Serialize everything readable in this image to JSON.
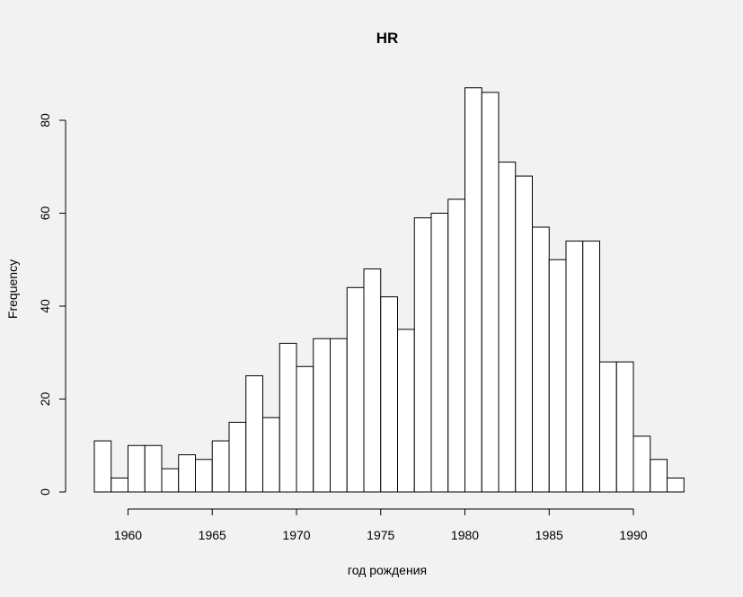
{
  "chart_data": {
    "type": "bar",
    "title": "HR",
    "xlabel": "год рождения",
    "ylabel": "Frequency",
    "bin_width": 1,
    "bins_start": [
      1958,
      1959,
      1960,
      1961,
      1962,
      1963,
      1964,
      1965,
      1966,
      1967,
      1968,
      1969,
      1970,
      1971,
      1972,
      1973,
      1974,
      1975,
      1976,
      1977,
      1978,
      1979,
      1980,
      1981,
      1982,
      1983,
      1984,
      1985,
      1986,
      1987,
      1988,
      1989,
      1990,
      1991,
      1992
    ],
    "values": [
      11,
      3,
      10,
      10,
      5,
      8,
      7,
      11,
      15,
      25,
      16,
      32,
      27,
      33,
      33,
      44,
      48,
      42,
      35,
      59,
      60,
      63,
      87,
      86,
      71,
      68,
      57,
      50,
      54,
      54,
      28,
      28,
      12,
      7,
      3
    ],
    "xlim": [
      1958,
      1993
    ],
    "ylim": [
      0,
      87
    ],
    "x_ticks": [
      1960,
      1965,
      1970,
      1975,
      1980,
      1985,
      1990
    ],
    "y_ticks": [
      0,
      20,
      40,
      60,
      80
    ],
    "grid": false
  }
}
